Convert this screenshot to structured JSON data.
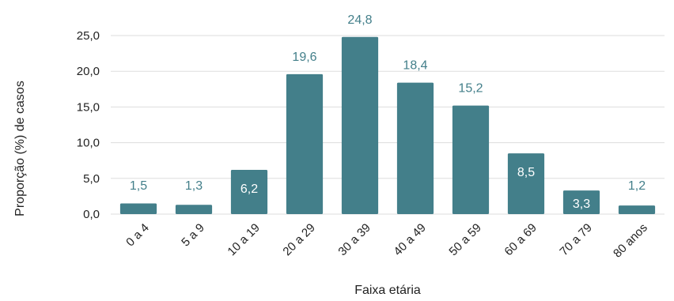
{
  "chart_data": {
    "type": "bar",
    "categories": [
      "0 a 4",
      "5 a 9",
      "10 a 19",
      "20 a 29",
      "30 a 39",
      "40 a 49",
      "50 a 59",
      "60 a 69",
      "70 a 79",
      "80 anos"
    ],
    "values": [
      1.5,
      1.3,
      6.2,
      19.6,
      24.8,
      18.4,
      15.2,
      8.5,
      3.3,
      1.2
    ],
    "data_labels": [
      "1,5",
      "1,3",
      "6,2",
      "19,6",
      "24,8",
      "18,4",
      "15,2",
      "8,5",
      "3,3",
      "1,2"
    ],
    "yticks": [
      0,
      5,
      10,
      15,
      20,
      25
    ],
    "ytick_labels": [
      "0,0",
      "5,0",
      "10,0",
      "15,0",
      "20,0",
      "25,0"
    ],
    "ylim": [
      0,
      25
    ],
    "title": "",
    "xlabel": "Faixa etária",
    "ylabel": "Proporção (%) de casos",
    "grid": true,
    "legend": "none",
    "colors": {
      "bar": "#437f8a",
      "label_outside": "#437f8a",
      "label_inside": "#ffffff",
      "grid": "#dddddd"
    }
  }
}
